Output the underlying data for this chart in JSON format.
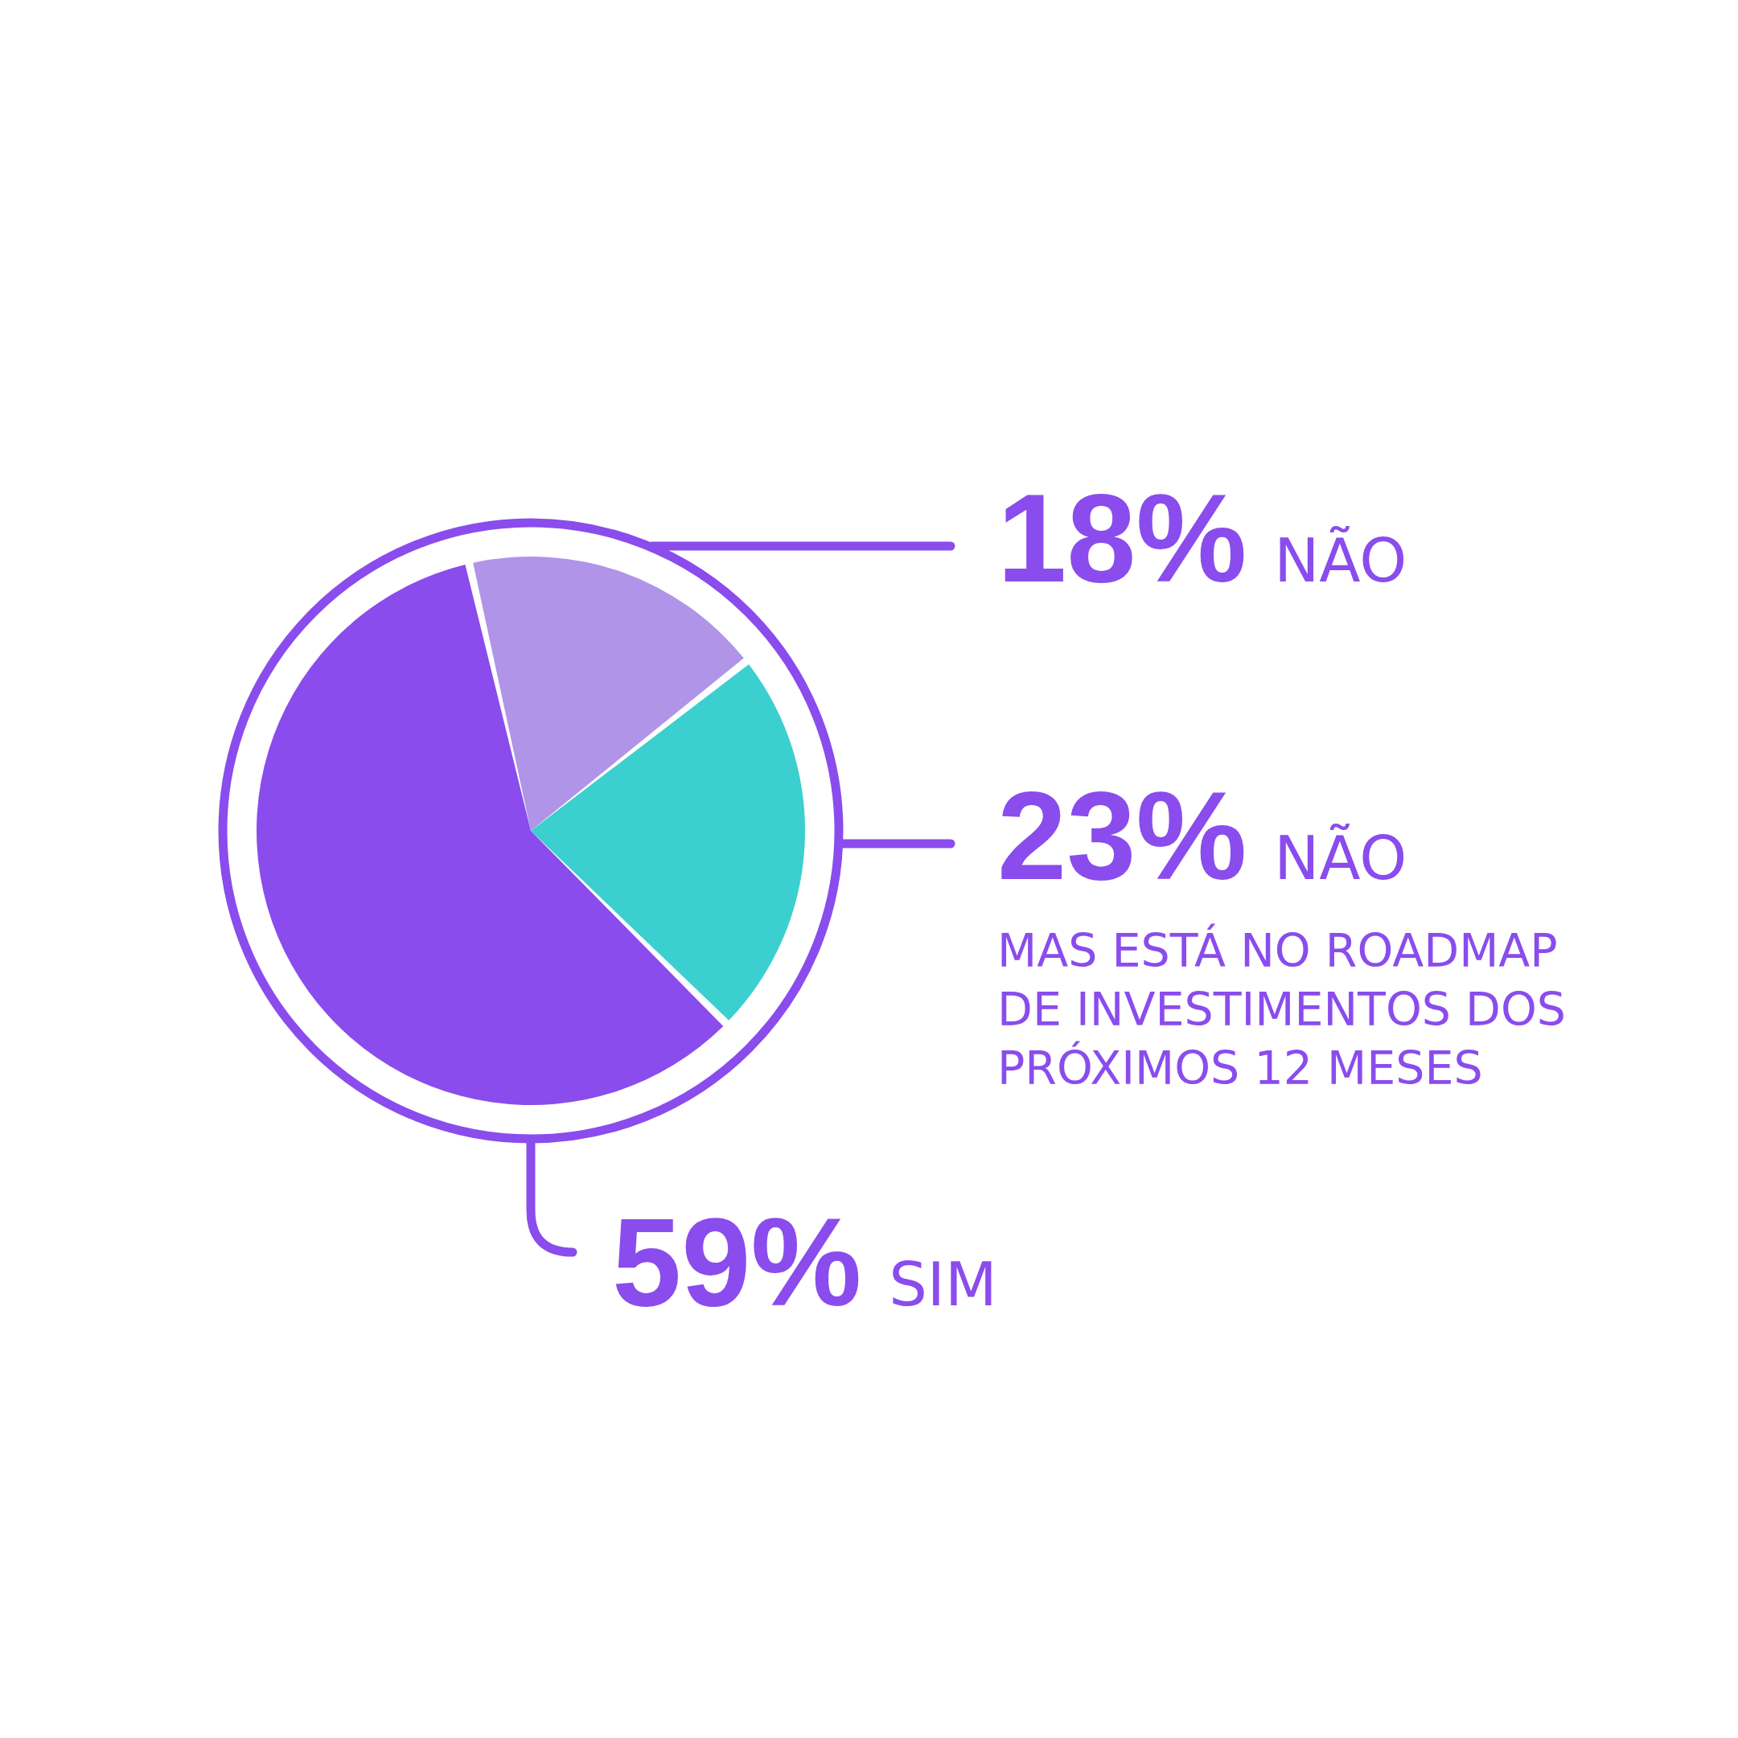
{
  "chart_data": {
    "type": "pie",
    "categories": [
      "NÃO",
      "NÃO",
      "SIM"
    ],
    "values": [
      18,
      23,
      59
    ],
    "value_labels": [
      "18%",
      "23%",
      "59%"
    ],
    "colors": [
      "#b094e8",
      "#3ccfcf",
      "#8a4ced"
    ],
    "annotations": [
      "MAS ESTÁ NO ROADMAP DE INVESTIMENTOS DOS PRÓXIMOS 12 MESES"
    ]
  }
}
